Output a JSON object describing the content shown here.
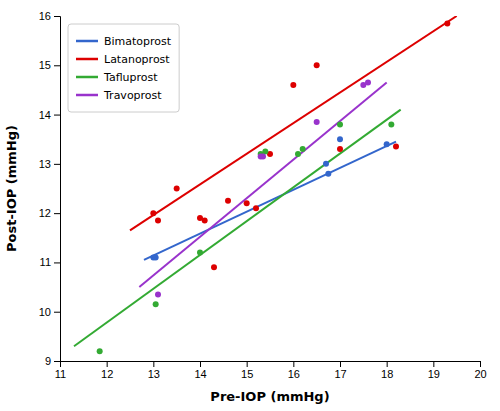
{
  "chart_data": {
    "type": "scatter",
    "xlabel": "Pre-IOP (mmHg)",
    "ylabel": "Post-IOP (mmHg)",
    "xlim": [
      11,
      20
    ],
    "ylim": [
      9,
      16
    ],
    "xticks": [
      11,
      12,
      13,
      14,
      15,
      16,
      17,
      18,
      19,
      20
    ],
    "yticks": [
      9,
      10,
      11,
      12,
      13,
      14,
      15,
      16
    ],
    "legend": "upper left",
    "grid": false,
    "series": [
      {
        "name": "Bimatoprost",
        "color": "#3366cc",
        "x": [
          13.0,
          13.05,
          16.7,
          16.75,
          17.0,
          18.0
        ],
        "values": [
          11.1,
          11.1,
          13.0,
          12.8,
          13.5,
          13.4
        ],
        "line_x": [
          12.8,
          18.2
        ],
        "line_values": [
          11.05,
          13.45
        ]
      },
      {
        "name": "Latanoprost",
        "color": "#dd0000",
        "x": [
          13.0,
          13.1,
          13.5,
          14.0,
          14.1,
          14.3,
          14.6,
          15.0,
          15.2,
          15.5,
          16.0,
          16.5,
          17.0,
          18.2,
          19.3
        ],
        "values": [
          12.0,
          11.85,
          12.5,
          11.9,
          11.85,
          10.9,
          12.25,
          12.2,
          12.1,
          13.2,
          14.6,
          15.0,
          13.3,
          13.35,
          15.85
        ],
        "line_x": [
          12.5,
          19.5
        ],
        "line_values": [
          11.65,
          16.0
        ]
      },
      {
        "name": "Tafluprost",
        "color": "#33aa33",
        "x": [
          11.85,
          13.05,
          14.0,
          15.3,
          15.4,
          16.1,
          16.2,
          17.0,
          18.1
        ],
        "values": [
          9.2,
          10.15,
          11.2,
          13.2,
          13.25,
          13.2,
          13.3,
          13.8,
          13.8
        ],
        "line_x": [
          11.3,
          18.3
        ],
        "line_values": [
          9.3,
          14.1
        ]
      },
      {
        "name": "Travoprost",
        "color": "#9933cc",
        "x": [
          13.1,
          15.3,
          15.35,
          16.5,
          17.5,
          17.6
        ],
        "values": [
          10.35,
          13.15,
          13.15,
          13.85,
          14.6,
          14.65
        ],
        "line_x": [
          12.7,
          18.0
        ],
        "line_values": [
          10.5,
          14.65
        ]
      }
    ]
  }
}
